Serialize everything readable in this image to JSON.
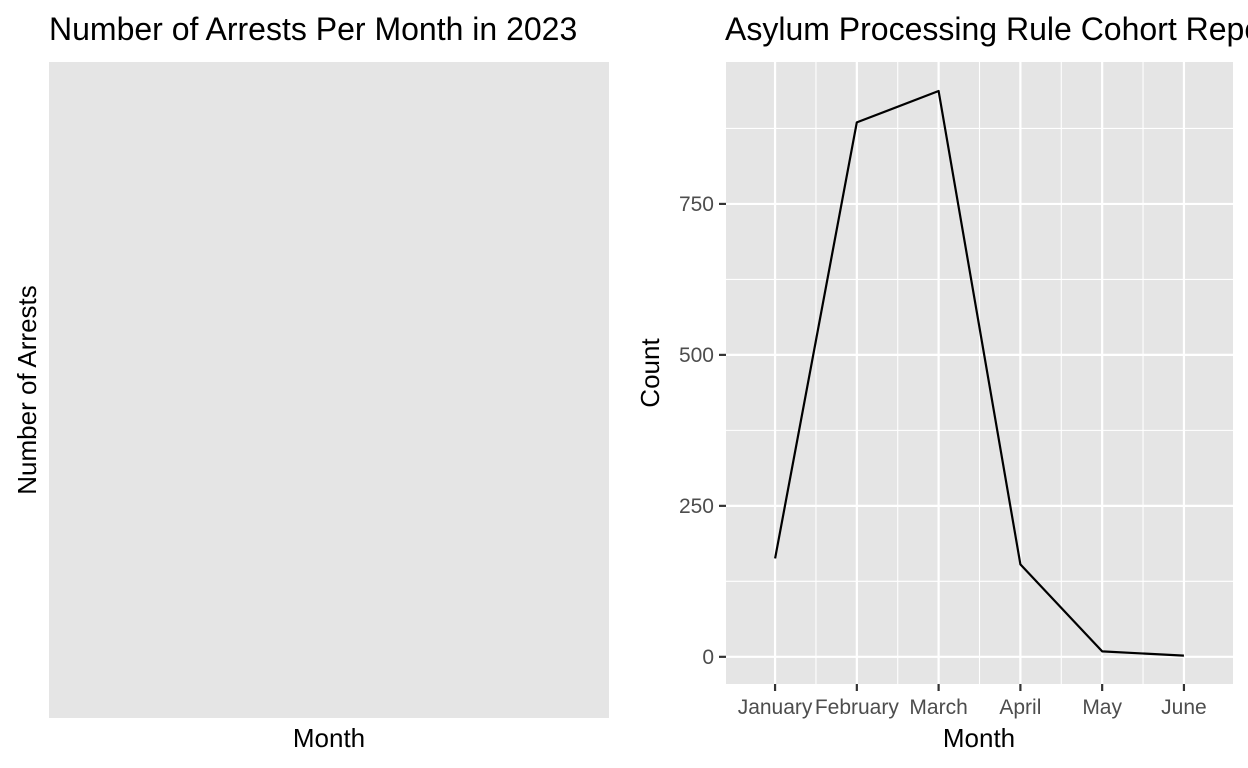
{
  "colors": {
    "panel_background": "#e5e5e5",
    "grid_line": "#ffffff",
    "series_line": "#000000",
    "tick_text": "#4d4d4d",
    "text": "#000000"
  },
  "chart_data": [
    {
      "type": "line",
      "title": "Number of Arrests Per Month in 2023",
      "xlabel": "Month",
      "ylabel": "Number of Arrests",
      "categories": [],
      "series": [],
      "grid": false
    },
    {
      "type": "line",
      "title": "Asylum Processing Rule Cohort Reports",
      "xlabel": "Month",
      "ylabel": "Count",
      "categories": [
        "January",
        "February",
        "March",
        "April",
        "May",
        "June"
      ],
      "series": [
        {
          "values": [
            163,
            885,
            937,
            153,
            9,
            2
          ]
        }
      ],
      "yticks": [
        0,
        250,
        500,
        750
      ],
      "ytick_labels": [
        "0",
        "250",
        "500",
        "750"
      ],
      "ylim": [
        -45,
        985
      ],
      "grid": true
    }
  ]
}
